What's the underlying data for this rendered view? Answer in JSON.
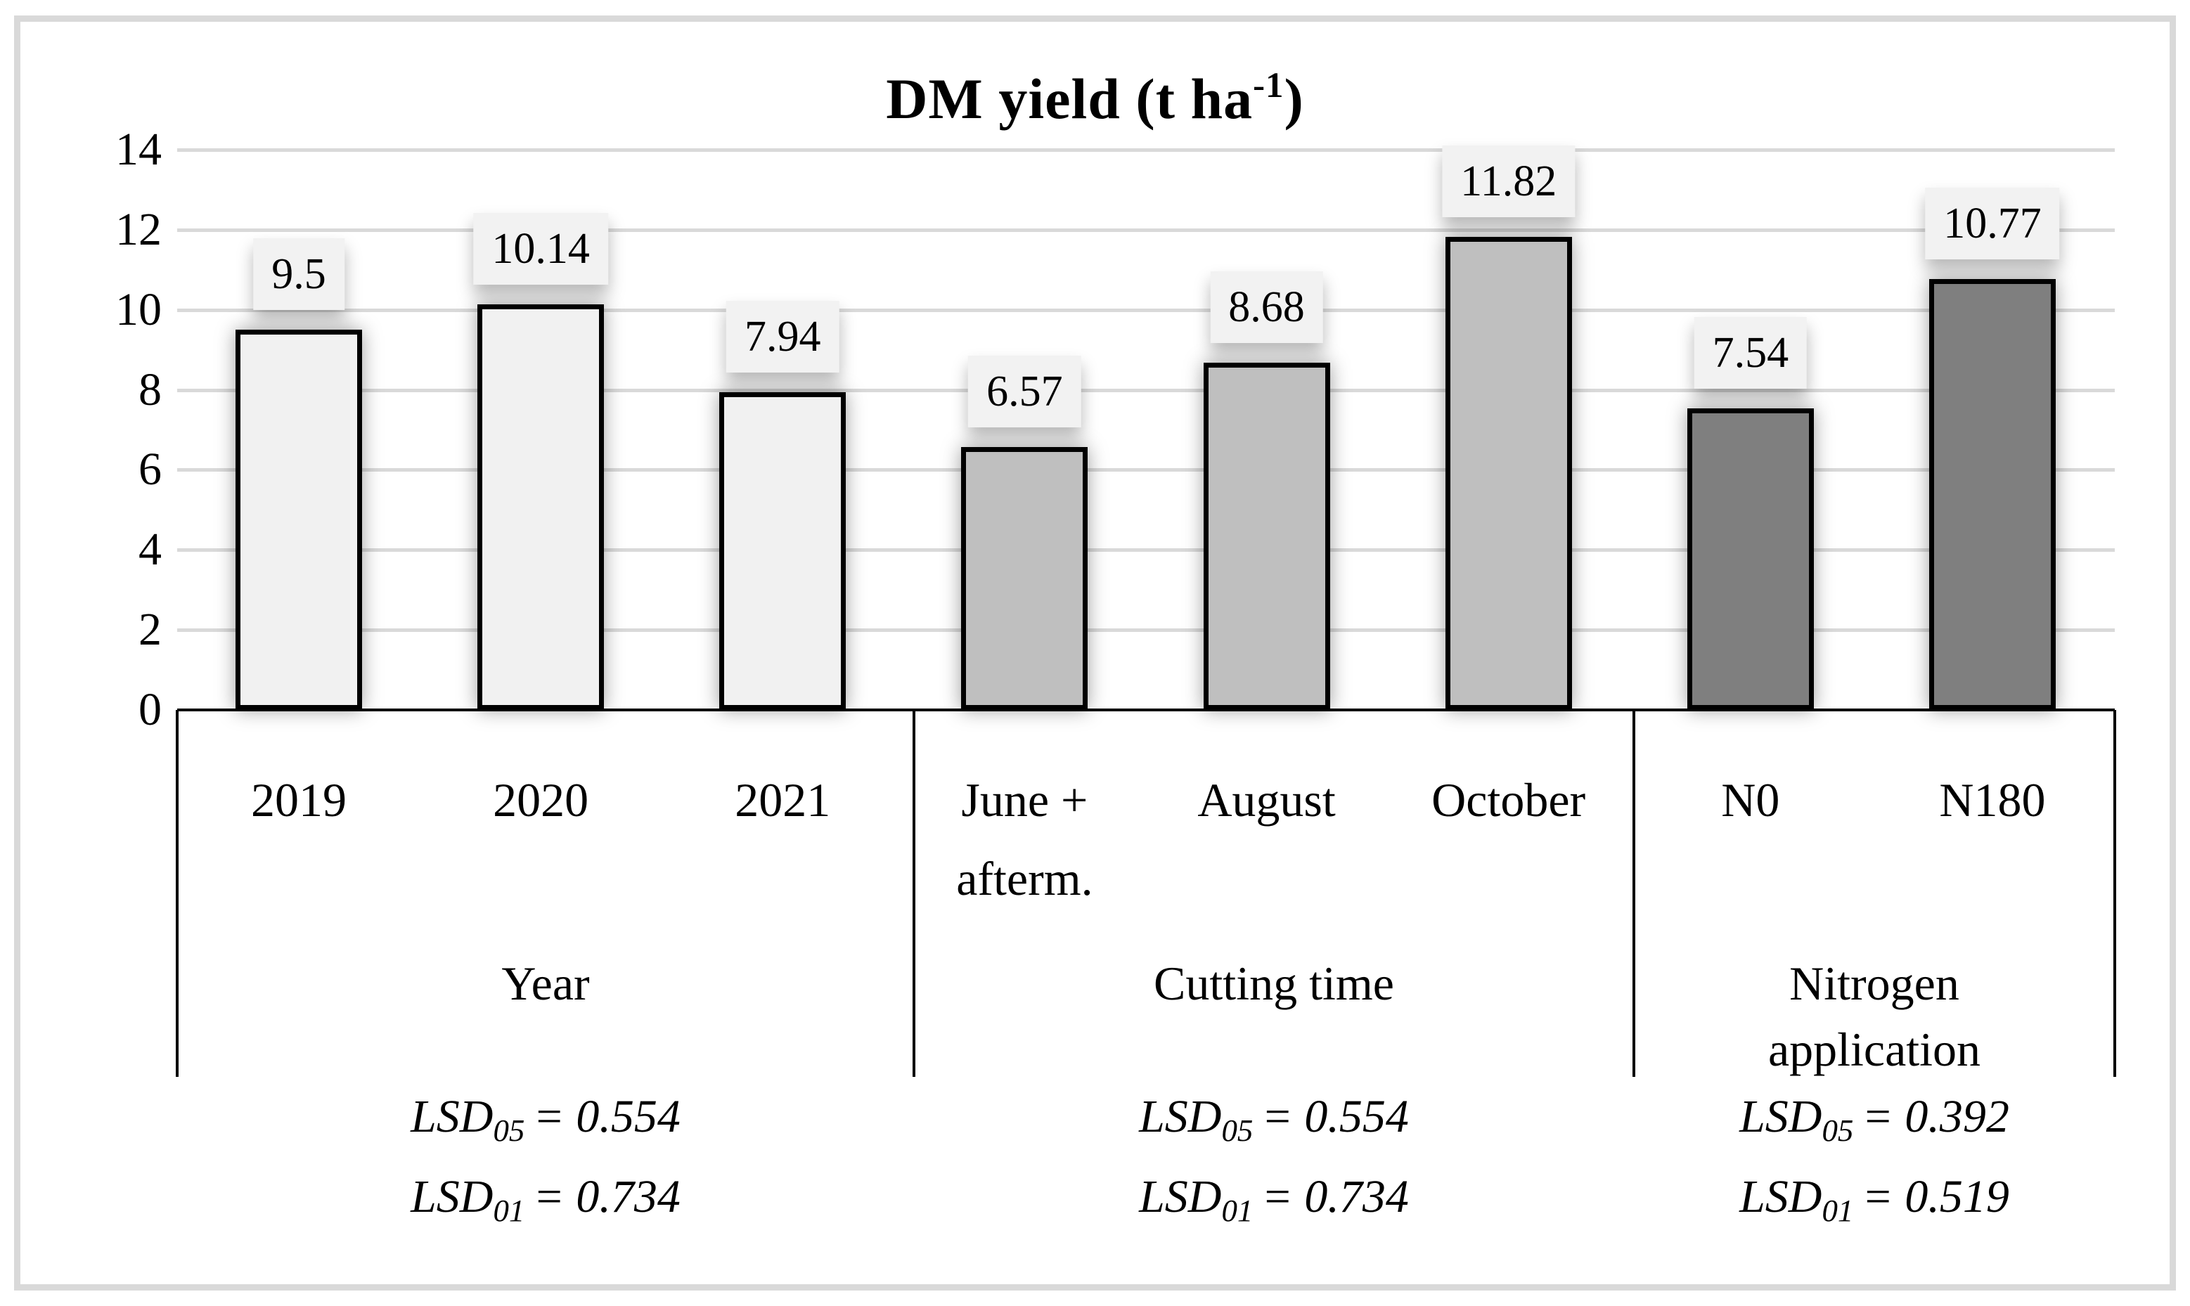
{
  "figure": {
    "title": {
      "main": "DM yield (t ha",
      "superscript": "-1",
      "suffix": ")"
    }
  },
  "colors": {
    "gridline": "#d9d9d9",
    "frame": "#d9d9d9",
    "axis": "#000000",
    "value_label_bg": "#f2f2f2",
    "bar_fill_year": "#f1f1f1",
    "bar_fill_cutting": "#bfbfbf",
    "bar_fill_nitrogen": "#7f7f7f",
    "bar_border": "#000000"
  },
  "chart_data": {
    "type": "bar",
    "title": "DM yield (t ha-1)",
    "xlabel": "",
    "ylabel": "",
    "ylim": [
      0,
      14
    ],
    "y_ticks": [
      "0",
      "2",
      "4",
      "6",
      "8",
      "10",
      "12",
      "14"
    ],
    "grid": true,
    "legend": "none",
    "groups": [
      {
        "label": "Year",
        "categories": [
          "2019",
          "2020",
          "2021"
        ],
        "values": [
          9.5,
          10.14,
          7.94
        ],
        "value_labels": [
          "9.5",
          "10.14",
          "7.94"
        ],
        "bar_color": "#f1f1f1",
        "lsd": [
          {
            "prefix": "LSD",
            "sub": "05",
            "rest": "= 0.554"
          },
          {
            "prefix": "LSD",
            "sub": "01",
            "rest": "= 0.734"
          }
        ]
      },
      {
        "label": "Cutting time",
        "categories": [
          "June +\nafterm.",
          "August",
          "October"
        ],
        "values": [
          6.57,
          8.68,
          11.82
        ],
        "value_labels": [
          "6.57",
          "8.68",
          "11.82"
        ],
        "bar_color": "#bfbfbf",
        "lsd": [
          {
            "prefix": "LSD",
            "sub": "05",
            "rest": "= 0.554"
          },
          {
            "prefix": "LSD",
            "sub": "01",
            "rest": "= 0.734"
          }
        ]
      },
      {
        "label": "Nitrogen\napplication",
        "categories": [
          "N0",
          "N180"
        ],
        "values": [
          7.54,
          10.77
        ],
        "value_labels": [
          "7.54",
          "10.77"
        ],
        "bar_color": "#7f7f7f",
        "lsd": [
          {
            "prefix": "LSD",
            "sub": "05",
            "rest": "= 0.392"
          },
          {
            "prefix": "LSD",
            "sub": "01",
            "rest": "= 0.519"
          }
        ]
      }
    ]
  }
}
